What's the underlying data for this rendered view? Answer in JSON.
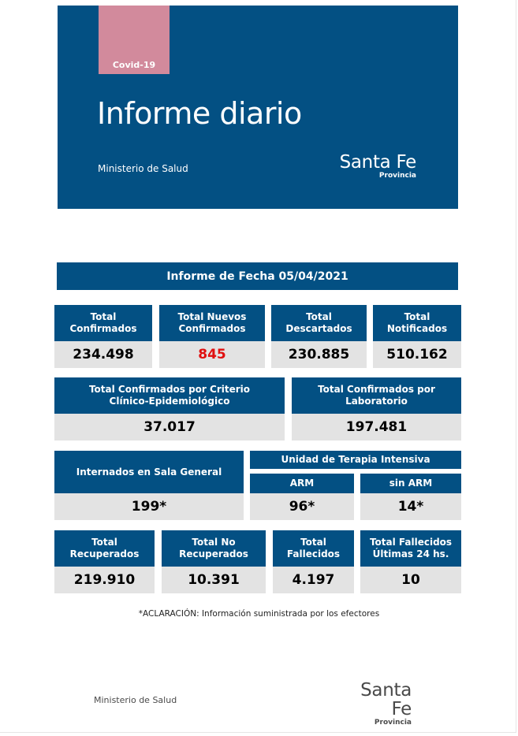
{
  "header": {
    "tag": "Covid-19",
    "title": "Informe diario",
    "ministry": "Ministerio de Salud",
    "logo_main": "Santa Fe",
    "logo_sub": "Provincia",
    "bg_color": "#035083",
    "tag_color": "#d28a9c"
  },
  "report_date_label": "Informe de Fecha 05/04/2021",
  "row1": [
    {
      "label": "Total Confirmados",
      "value": "234.498"
    },
    {
      "label": "Total Nuevos Confirmados",
      "value": "845"
    },
    {
      "label": "Total Descartados",
      "value": "230.885"
    },
    {
      "label": "Total Notificados",
      "value": "510.162"
    }
  ],
  "row2": [
    {
      "label": "Total Confirmados por Criterio Clínico-Epidemiológico",
      "value": "37.017"
    },
    {
      "label": "Total Confirmados por Laboratorio",
      "value": "197.481"
    }
  ],
  "row3": {
    "general": {
      "label": "Internados en Sala General",
      "value": "199*"
    },
    "uti_label": "Unidad de Terapia Intensiva",
    "arm": {
      "label": "ARM",
      "value": "96*"
    },
    "sin_arm": {
      "label": "sin ARM",
      "value": "14*"
    }
  },
  "row4": [
    {
      "label": "Total Recuperados",
      "value": "219.910"
    },
    {
      "label": "Total No Recuperados",
      "value": "10.391"
    },
    {
      "label": "Total Fallecidos",
      "value": "4.197"
    },
    {
      "label": "Total Fallecidos Últimas 24 hs.",
      "value": "10"
    }
  ],
  "note": "*ACLARACIÓN: Información suministrada por los efectores",
  "footer": {
    "ministry": "Ministerio de Salud",
    "logo_main": "Santa Fe",
    "logo_sub": "Provincia"
  }
}
